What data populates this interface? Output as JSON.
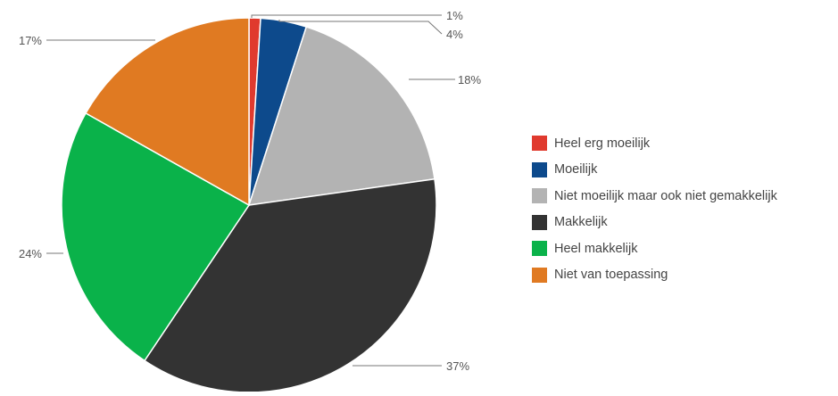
{
  "chart_data": {
    "type": "pie",
    "title": "",
    "slices": [
      {
        "name": "Heel erg moeilijk",
        "value": 1,
        "label": "1%",
        "color": "#e03a2e"
      },
      {
        "name": "Moeilijk",
        "value": 4,
        "label": "4%",
        "color": "#0d4a8c"
      },
      {
        "name": "Niet moeilijk maar ook niet gemakkelijk",
        "value": 18,
        "label": "18%",
        "color": "#b3b3b3"
      },
      {
        "name": "Makkelijk",
        "value": 37,
        "label": "37%",
        "color": "#333333"
      },
      {
        "name": "Heel makkelijk",
        "value": 24,
        "label": "24%",
        "color": "#0ab24a"
      },
      {
        "name": "Niet van toepassing",
        "value": 17,
        "label": "17%",
        "color": "#e07a22"
      }
    ],
    "legend_position": "right"
  }
}
